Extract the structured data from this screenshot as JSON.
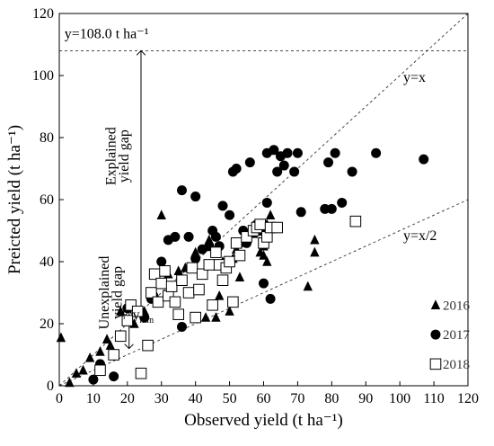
{
  "chart_data": {
    "type": "scatter",
    "title": "",
    "xlabel": "Observed yield (t ha⁻¹)",
    "ylabel": "Preicted yield (t ha⁻¹)",
    "xlim": [
      0,
      120
    ],
    "ylim": [
      0,
      120
    ],
    "x_ticks": [
      "0",
      "10",
      "20",
      "30",
      "40",
      "50",
      "60",
      "70",
      "80",
      "90",
      "100",
      "110",
      "120"
    ],
    "y_ticks": [
      "0",
      "20",
      "40",
      "60",
      "80",
      "100",
      "120"
    ],
    "grid": false,
    "legend_position": "bottom-right",
    "series": [
      {
        "name": "2016",
        "marker": "triangle",
        "color": "#000000",
        "points": [
          [
            0.5,
            15.5
          ],
          [
            3,
            1
          ],
          [
            5,
            4
          ],
          [
            7,
            5
          ],
          [
            9,
            9
          ],
          [
            12,
            11
          ],
          [
            14,
            15
          ],
          [
            15,
            13
          ],
          [
            18,
            24
          ],
          [
            20,
            25
          ],
          [
            22,
            20
          ],
          [
            25,
            24
          ],
          [
            28,
            30
          ],
          [
            30,
            55
          ],
          [
            32,
            36
          ],
          [
            35,
            37
          ],
          [
            37,
            38
          ],
          [
            40,
            43
          ],
          [
            43,
            22
          ],
          [
            44,
            47
          ],
          [
            46,
            22
          ],
          [
            47,
            29
          ],
          [
            48,
            40
          ],
          [
            50,
            24
          ],
          [
            51,
            41
          ],
          [
            52,
            44
          ],
          [
            53,
            35
          ],
          [
            55,
            48
          ],
          [
            57,
            49
          ],
          [
            59,
            43
          ],
          [
            60,
            45
          ],
          [
            60,
            42
          ],
          [
            61,
            40
          ],
          [
            61,
            52
          ],
          [
            62,
            55
          ],
          [
            73,
            32
          ],
          [
            75,
            47
          ],
          [
            75,
            43
          ]
        ]
      },
      {
        "name": "2017",
        "marker": "circle",
        "color": "#000000",
        "points": [
          [
            10,
            2
          ],
          [
            12,
            7
          ],
          [
            16,
            3
          ],
          [
            18,
            16
          ],
          [
            20,
            25
          ],
          [
            25,
            22
          ],
          [
            27,
            28
          ],
          [
            30,
            40
          ],
          [
            32,
            47
          ],
          [
            34,
            48
          ],
          [
            36,
            19
          ],
          [
            36,
            63
          ],
          [
            38,
            48
          ],
          [
            40,
            41
          ],
          [
            40,
            61
          ],
          [
            42,
            44
          ],
          [
            44,
            45
          ],
          [
            45,
            50
          ],
          [
            46,
            48
          ],
          [
            47,
            45
          ],
          [
            48,
            58
          ],
          [
            50,
            55
          ],
          [
            51,
            69
          ],
          [
            52,
            70
          ],
          [
            53,
            46
          ],
          [
            54,
            50
          ],
          [
            55,
            46
          ],
          [
            56,
            72
          ],
          [
            58,
            52
          ],
          [
            59,
            50
          ],
          [
            60,
            33
          ],
          [
            60,
            52
          ],
          [
            61,
            59
          ],
          [
            61,
            75
          ],
          [
            62,
            28
          ],
          [
            63,
            76
          ],
          [
            64,
            69
          ],
          [
            65,
            74
          ],
          [
            66,
            71
          ],
          [
            67,
            75
          ],
          [
            69,
            69
          ],
          [
            70,
            75
          ],
          [
            71,
            56
          ],
          [
            78,
            57
          ],
          [
            79,
            72
          ],
          [
            80,
            57
          ],
          [
            81,
            75
          ],
          [
            83,
            59
          ],
          [
            86,
            69
          ],
          [
            93,
            75
          ],
          [
            107,
            73
          ]
        ]
      },
      {
        "name": "2018",
        "marker": "square",
        "color": "#000000",
        "points": [
          [
            12,
            5
          ],
          [
            16,
            10
          ],
          [
            18,
            16
          ],
          [
            20,
            21
          ],
          [
            21,
            26
          ],
          [
            23,
            24
          ],
          [
            24,
            4
          ],
          [
            26,
            13
          ],
          [
            27,
            30
          ],
          [
            28,
            36
          ],
          [
            29,
            27
          ],
          [
            30,
            33
          ],
          [
            31,
            37
          ],
          [
            32,
            29
          ],
          [
            33,
            32
          ],
          [
            34,
            27
          ],
          [
            35,
            23
          ],
          [
            36,
            34
          ],
          [
            38,
            30
          ],
          [
            39,
            38
          ],
          [
            40,
            22
          ],
          [
            41,
            31
          ],
          [
            42,
            36
          ],
          [
            44,
            39
          ],
          [
            45,
            26
          ],
          [
            46,
            43
          ],
          [
            47,
            39
          ],
          [
            48,
            34
          ],
          [
            49,
            38
          ],
          [
            50,
            40
          ],
          [
            51,
            27
          ],
          [
            52,
            46
          ],
          [
            53,
            42
          ],
          [
            55,
            48
          ],
          [
            57,
            50
          ],
          [
            58,
            51
          ],
          [
            59,
            52
          ],
          [
            60,
            46
          ],
          [
            61,
            48
          ],
          [
            62,
            51
          ],
          [
            64,
            51
          ],
          [
            87,
            53
          ]
        ]
      }
    ],
    "reference_lines": [
      {
        "label": "y=x",
        "slope": 1,
        "intercept": 0
      },
      {
        "label": "y=x/2",
        "slope": 0.5,
        "intercept": 0
      },
      {
        "label": "y=108.0 t ha⁻¹",
        "horizontal": 108
      }
    ],
    "annotations": {
      "explained_gap_line1": "Explained",
      "explained_gap_line2": "yield gap",
      "explained_gap_x": 24,
      "explained_gap_range": [
        24,
        108
      ],
      "unexplained_gap_line1": "Unexplained",
      "unexplained_gap_line2": "yield gap",
      "unexplained_gap_range": [
        12,
        24
      ],
      "ymin_label": "y",
      "ymin_subscript": "min"
    }
  }
}
